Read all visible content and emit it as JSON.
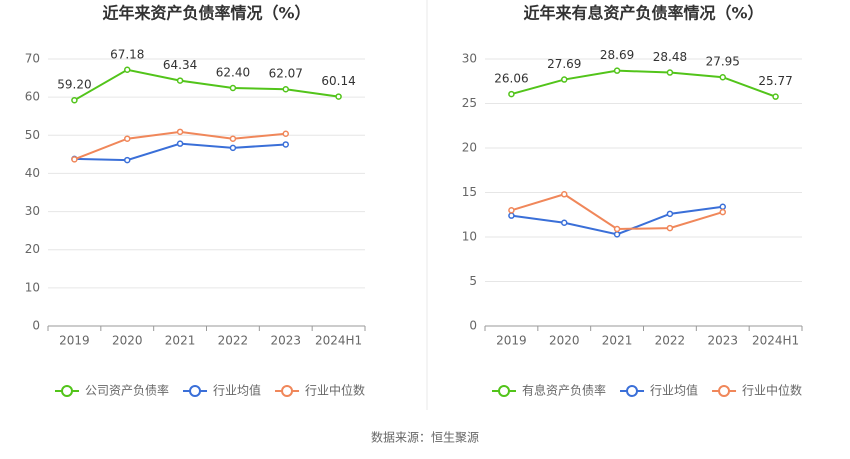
{
  "chart_data": [
    {
      "type": "line",
      "title": "近年来资产负债率情况（%）",
      "categories": [
        "2019",
        "2020",
        "2021",
        "2022",
        "2023",
        "2024H1"
      ],
      "series": [
        {
          "name": "公司资产负债率",
          "color": "#52c41a",
          "values": [
            59.2,
            67.18,
            64.34,
            62.4,
            62.07,
            60.14
          ],
          "value_labels": [
            "59.20",
            "67.18",
            "64.34",
            "62.40",
            "62.07",
            "60.14"
          ]
        },
        {
          "name": "行业均值",
          "color": "#3a6fd8",
          "values": [
            43.8,
            43.5,
            47.8,
            46.7,
            47.6,
            null
          ]
        },
        {
          "name": "行业中位数",
          "color": "#f0875a",
          "values": [
            43.7,
            49.1,
            50.9,
            49.1,
            50.4,
            null
          ]
        }
      ],
      "ylim": [
        0,
        70
      ],
      "yticks": [
        0,
        10,
        20,
        30,
        40,
        50,
        60,
        70
      ],
      "grid": true
    },
    {
      "type": "line",
      "title": "近年来有息资产负债率情况（%）",
      "categories": [
        "2019",
        "2020",
        "2021",
        "2022",
        "2023",
        "2024H1"
      ],
      "series": [
        {
          "name": "有息资产负债率",
          "color": "#52c41a",
          "values": [
            26.06,
            27.69,
            28.69,
            28.48,
            27.95,
            25.77
          ]
        },
        {
          "name": "行业均值",
          "color": "#3a6fd8",
          "values": [
            12.4,
            11.6,
            10.3,
            12.6,
            13.4,
            null
          ]
        },
        {
          "name": "行业中位数",
          "color": "#f0875a",
          "values": [
            13.0,
            14.8,
            10.9,
            11.0,
            12.8,
            null
          ]
        }
      ],
      "ylim": [
        0,
        30
      ],
      "yticks": [
        0,
        5,
        10,
        15,
        20,
        25,
        30
      ],
      "grid": true
    }
  ],
  "source": "数据来源：恒生聚源"
}
